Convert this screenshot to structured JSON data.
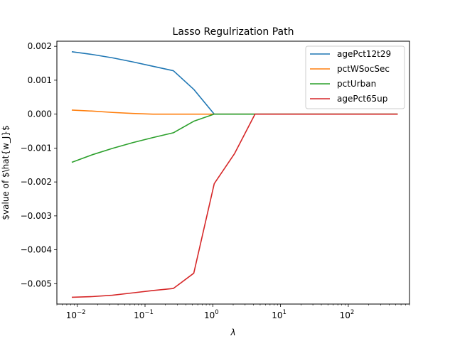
{
  "chart_data": {
    "type": "line",
    "title": "Lasso Regulrization Path",
    "xlabel": "λ",
    "ylabel": "$value of $\\hat{w_J}$",
    "xscale": "log",
    "xlim": [
      0.005,
      800
    ],
    "ylim": [
      -0.0056,
      0.00215
    ],
    "xticks": [
      {
        "value": 0.01,
        "base": "10",
        "exp": "−2"
      },
      {
        "value": 0.1,
        "base": "10",
        "exp": "−1"
      },
      {
        "value": 1,
        "base": "10",
        "exp": "0"
      },
      {
        "value": 10,
        "base": "10",
        "exp": "1"
      },
      {
        "value": 100,
        "base": "10",
        "exp": "2"
      }
    ],
    "yticks": [
      {
        "value": 0.002,
        "label": "0.002"
      },
      {
        "value": 0.001,
        "label": "0.001"
      },
      {
        "value": 0.0,
        "label": "0.000"
      },
      {
        "value": -0.001,
        "label": "−0.001"
      },
      {
        "value": -0.002,
        "label": "−0.002"
      },
      {
        "value": -0.003,
        "label": "−0.003"
      },
      {
        "value": -0.004,
        "label": "−0.004"
      },
      {
        "value": -0.005,
        "label": "−0.005"
      }
    ],
    "grid": false,
    "legend_position": "top-right",
    "x": [
      0.0083,
      0.0165,
      0.033,
      0.066,
      0.131,
      0.262,
      0.524,
      1.05,
      2.1,
      4.2,
      8.4,
      16.8,
      33.5,
      67,
      134,
      268,
      536
    ],
    "series": [
      {
        "name": "agePct12t29",
        "color": "#1f77b4",
        "values": [
          0.00184,
          0.00176,
          0.00166,
          0.00154,
          0.00141,
          0.00128,
          0.00073,
          0.0,
          0.0,
          0.0,
          0.0,
          0.0,
          0.0,
          0.0,
          0.0,
          0.0,
          0.0
        ]
      },
      {
        "name": "pctWSocSec",
        "color": "#ff7f0e",
        "values": [
          0.00012,
          9e-05,
          5e-05,
          2e-05,
          0.0,
          0.0,
          0.0,
          0.0,
          0.0,
          0.0,
          0.0,
          0.0,
          0.0,
          0.0,
          0.0,
          0.0,
          0.0
        ]
      },
      {
        "name": "pctUrban",
        "color": "#2ca02c",
        "values": [
          -0.00142,
          -0.0012,
          -0.00101,
          -0.00084,
          -0.00069,
          -0.00055,
          -0.00021,
          0.0,
          0.0,
          0.0,
          0.0,
          0.0,
          0.0,
          0.0,
          0.0,
          0.0,
          0.0
        ]
      },
      {
        "name": "agePct65up",
        "color": "#d62728",
        "values": [
          -0.0054,
          -0.00538,
          -0.00534,
          -0.00527,
          -0.0052,
          -0.00514,
          -0.00469,
          -0.00205,
          -0.00116,
          0.0,
          0.0,
          0.0,
          0.0,
          0.0,
          0.0,
          0.0,
          0.0
        ]
      }
    ]
  }
}
